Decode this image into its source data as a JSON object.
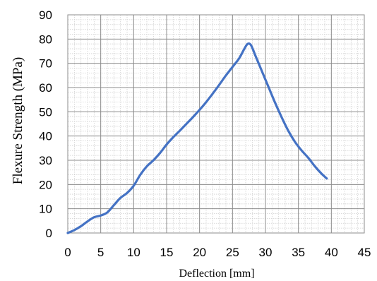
{
  "chart_data": {
    "type": "line",
    "title": "",
    "xlabel": "Deflection [mm]",
    "ylabel": "Flexure Strength (MPa)",
    "xlim": [
      0,
      45
    ],
    "ylim": [
      0,
      90
    ],
    "x_ticks": [
      0,
      5,
      10,
      15,
      20,
      25,
      30,
      35,
      40,
      45
    ],
    "y_ticks": [
      0,
      10,
      20,
      30,
      40,
      50,
      60,
      70,
      80,
      90
    ],
    "grid": "major and minor",
    "legend": "none",
    "series": [
      {
        "color": "#4472C4",
        "x": [
          0,
          1,
          2,
          3,
          4,
          5,
          6,
          7,
          8,
          9,
          10,
          11,
          12,
          13,
          14,
          15,
          16,
          17,
          18,
          19,
          20,
          21,
          22,
          23,
          24,
          25,
          26,
          26.8,
          27.3,
          27.8,
          28.5,
          29.5,
          30.5,
          31.5,
          32.5,
          33.5,
          34.5,
          35.5,
          36.5,
          37.5,
          38.5,
          39.3
        ],
        "y": [
          0,
          1.2,
          2.8,
          4.8,
          6.5,
          7.2,
          8.5,
          11.5,
          14.5,
          16.5,
          19.5,
          24.0,
          27.5,
          30.0,
          33.0,
          36.5,
          39.5,
          42.2,
          45.0,
          47.8,
          50.8,
          54.0,
          57.5,
          61.2,
          65.0,
          68.5,
          72.0,
          76.0,
          78.0,
          77.5,
          73.0,
          66.5,
          60.0,
          53.5,
          47.5,
          42.0,
          37.5,
          34.0,
          31.0,
          27.5,
          24.5,
          22.5
        ]
      }
    ]
  }
}
